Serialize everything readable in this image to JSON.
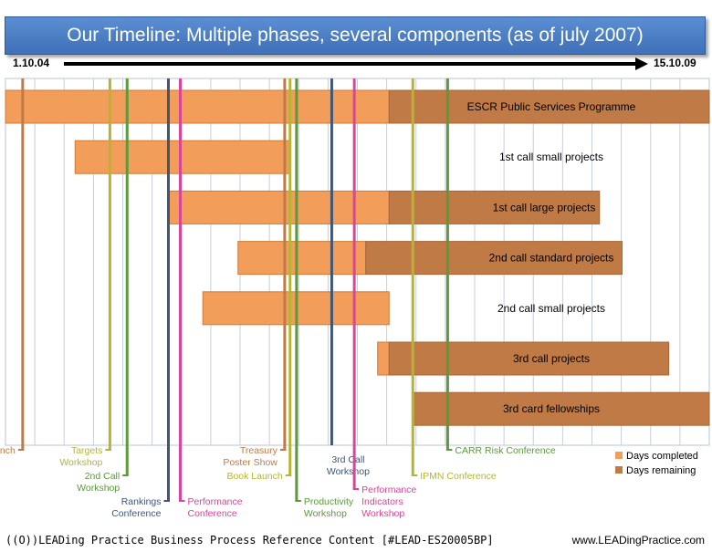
{
  "title": "Our Timeline: Multiple phases, several components (as of july 2007)",
  "footer_left": "((O))LEADing Practice Business Process Reference Content [#LEAD-ES20005BP]",
  "footer_right": "www.LEADingPractice.com",
  "chart_data": {
    "type": "gantt",
    "x_start_label": "1.10.04",
    "x_end_label": "15.10.09",
    "x_range": [
      "2004-10-01",
      "2009-10-15"
    ],
    "grid": true,
    "colors": {
      "completed": "#f29d5a",
      "remaining": "#c07a46"
    },
    "legend": [
      {
        "key": "completed",
        "label": "Days completed"
      },
      {
        "key": "remaining",
        "label": "Days remaining"
      }
    ],
    "legend_position": "bottom-right",
    "bars": [
      {
        "label": "ESCR Public Services Programme",
        "start": "2004-10-01",
        "status_date": "2007-07-01",
        "end": "2009-10-15"
      },
      {
        "label": "1st call small projects",
        "start": "2005-04-01",
        "status_date": "2006-10-15",
        "end": "2006-10-15"
      },
      {
        "label": "1st call large projects",
        "start": "2005-12-01",
        "status_date": "2007-07-01",
        "end": "2009-01-01"
      },
      {
        "label": "2nd call standard projects",
        "start": "2006-06-01",
        "status_date": "2007-05-01",
        "end": "2009-03-01"
      },
      {
        "label": "2nd call small projects",
        "start": "2006-03-01",
        "status_date": "2007-07-01",
        "end": "2007-07-01"
      },
      {
        "label": "3rd call projects",
        "start": "2007-06-01",
        "status_date": "2007-07-01",
        "end": "2009-07-01"
      },
      {
        "label": "3rd card fellowships",
        "start": "2007-09-01",
        "status_date": "2007-09-01",
        "end": "2009-10-15"
      }
    ],
    "events": [
      {
        "label": [
          "Launch"
        ],
        "date": "2004-11-15",
        "color": "#c07a46"
      },
      {
        "label": [
          "Targets",
          "Workshop"
        ],
        "date": "2005-07-01",
        "color": "#b5b534"
      },
      {
        "label": [
          "2nd Call",
          "Workshop"
        ],
        "date": "2005-08-15",
        "color": "#5a9a3a"
      },
      {
        "label": [
          "Rankings",
          "Conference"
        ],
        "date": "2005-12-01",
        "color": "#3e5677"
      },
      {
        "label": [
          "Performance",
          "Conference"
        ],
        "date": "2006-01-01",
        "color": "#d9459a"
      },
      {
        "label": [
          "Treasury",
          "Poster Show"
        ],
        "date": "2006-10-01",
        "color": "#c07a46"
      },
      {
        "label": [
          "Book Launch"
        ],
        "date": "2006-10-15",
        "color": "#b5b534"
      },
      {
        "label": [
          "Productivity",
          "Workshop"
        ],
        "date": "2006-11-01",
        "color": "#5a9a3a"
      },
      {
        "label": [
          "3rd Call",
          "Workshop"
        ],
        "date": "2007-02-01",
        "color": "#3e5677"
      },
      {
        "label": [
          "Performance",
          "Indicators",
          "Workshop"
        ],
        "date": "2007-04-01",
        "color": "#d9459a"
      },
      {
        "label": [
          "IPMN Conference"
        ],
        "date": "2007-09-01",
        "color": "#b5b534"
      },
      {
        "label": [
          "CARR Risk Conference"
        ],
        "date": "2007-12-01",
        "color": "#5a9a3a"
      }
    ]
  }
}
